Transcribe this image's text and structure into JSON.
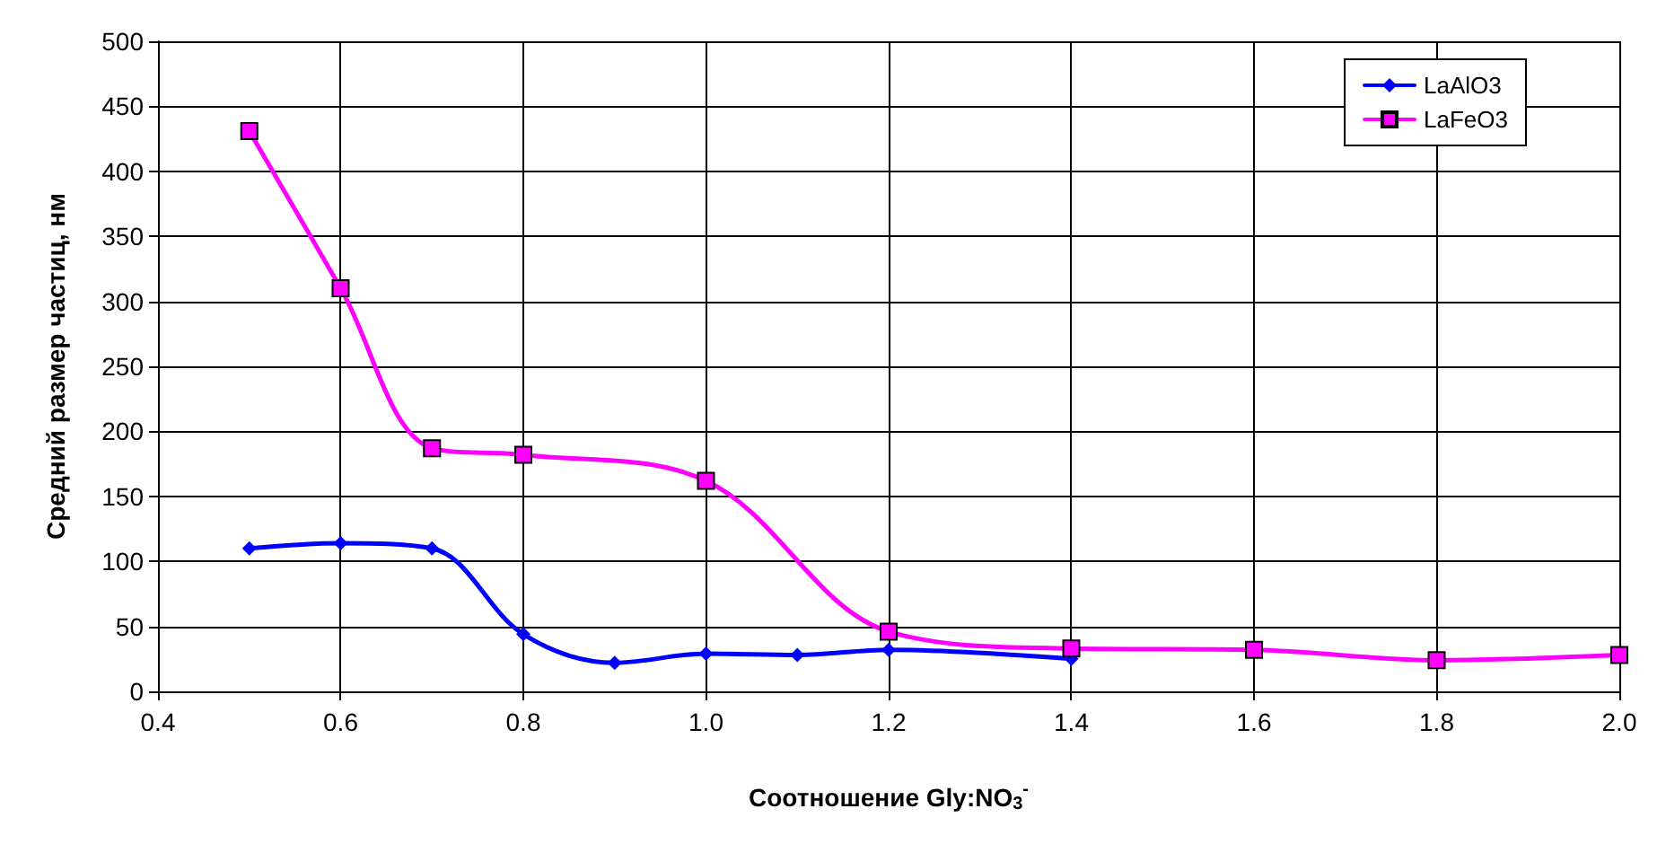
{
  "chart_data": {
    "type": "line",
    "xlabel": "Соотношение Gly:NO$_{3}$$^{-}$",
    "ylabel": "Средний размер частиц, нм",
    "series": [
      {
        "name": "LaAlO3",
        "color": "#0000ff",
        "marker": "diamond",
        "x": [
          0.5,
          0.6,
          0.7,
          0.8,
          0.9,
          1.0,
          1.1,
          1.2,
          1.4
        ],
        "values": [
          110,
          114,
          110,
          44,
          22,
          29,
          28,
          32,
          25
        ]
      },
      {
        "name": "LaFeO3",
        "color": "#ff00ff",
        "marker": "square",
        "x": [
          0.5,
          0.6,
          0.7,
          0.8,
          1.0,
          1.2,
          1.4,
          1.6,
          1.8,
          2.0
        ],
        "values": [
          431,
          310,
          187,
          182,
          162,
          46,
          33,
          32,
          24,
          28
        ]
      }
    ],
    "xlim": [
      0.4,
      2.0
    ],
    "xticks": [
      {
        "value": 0.4,
        "label": "0.4"
      },
      {
        "value": 0.6,
        "label": "0.6"
      },
      {
        "value": 0.8,
        "label": "0.8"
      },
      {
        "value": 1.0,
        "label": "1.0"
      },
      {
        "value": 1.2,
        "label": "1.2"
      },
      {
        "value": 1.4,
        "label": "1.4"
      },
      {
        "value": 1.6,
        "label": "1.6"
      },
      {
        "value": 1.8,
        "label": "1.8"
      },
      {
        "value": 2.0,
        "label": "2.0"
      }
    ],
    "ylim": [
      0,
      500
    ],
    "yticks": [
      0,
      50,
      100,
      150,
      200,
      250,
      300,
      350,
      400,
      450,
      500
    ],
    "grid": true,
    "legend": "top right",
    "line_style": "solid"
  }
}
